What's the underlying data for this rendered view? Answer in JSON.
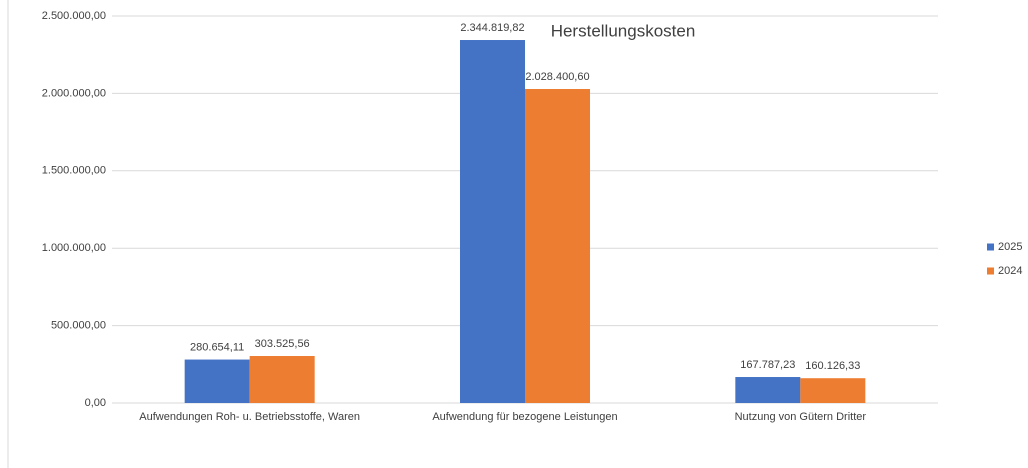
{
  "chart_data": {
    "type": "bar",
    "title": "Herstellungskosten",
    "categories": [
      "Aufwendungen Roh- u. Betriebsstoffe, Waren",
      "Aufwendung für bezogene Leistungen",
      "Nutzung von Gütern Dritter"
    ],
    "series": [
      {
        "name": "2025",
        "color": "#4472c4",
        "values": [
          280654.11,
          2344819.82,
          167787.23
        ],
        "value_labels": [
          "280.654,11",
          "2.344.819,82",
          "167.787,23"
        ]
      },
      {
        "name": "2024",
        "color": "#ed7d31",
        "values": [
          303525.56,
          2028400.6,
          160126.33
        ],
        "value_labels": [
          "303.525,56",
          "2.028.400,60",
          "160.126,33"
        ]
      }
    ],
    "ylim": [
      0,
      2500000
    ],
    "yticks": [
      {
        "value": 0,
        "label": "0,00"
      },
      {
        "value": 500000,
        "label": "500.000,00"
      },
      {
        "value": 1000000,
        "label": "1.000.000,00"
      },
      {
        "value": 1500000,
        "label": "1.500.000,00"
      },
      {
        "value": 2000000,
        "label": "2.000.000,00"
      },
      {
        "value": 2500000,
        "label": "2.500.000,00"
      }
    ],
    "grid": true,
    "legend": "right"
  }
}
